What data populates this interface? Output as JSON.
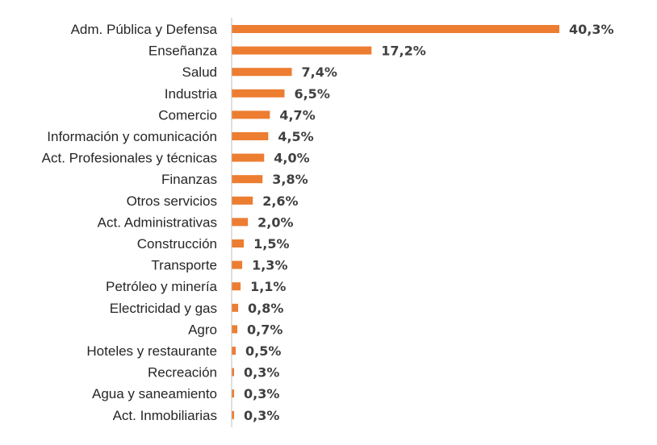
{
  "chart_data": {
    "type": "bar",
    "orientation": "horizontal",
    "title": "",
    "xlabel": "",
    "ylabel": "",
    "color": "#ED7D31",
    "categories": [
      "Adm. Pública y Defensa",
      "Enseñanza",
      "Salud",
      "Industria",
      "Comercio",
      "Información y comunicación",
      "Act. Profesionales y técnicas",
      "Finanzas",
      "Otros servicios",
      "Act. Administrativas",
      "Construcción",
      "Transporte",
      "Petróleo y minería",
      "Electricidad y gas",
      "Agro",
      "Hoteles y restaurante",
      "Recreación",
      "Agua y saneamiento",
      "Act. Inmobiliarias"
    ],
    "values": [
      40.3,
      17.2,
      7.4,
      6.5,
      4.7,
      4.5,
      4.0,
      3.8,
      2.6,
      2.0,
      1.5,
      1.3,
      1.1,
      0.8,
      0.7,
      0.5,
      0.3,
      0.3,
      0.3
    ],
    "value_labels": [
      "40,3%",
      "17,2%",
      "7,4%",
      "6,5%",
      "4,7%",
      "4,5%",
      "4,0%",
      "3,8%",
      "2,6%",
      "2,0%",
      "1,5%",
      "1,3%",
      "1,1%",
      "0,8%",
      "0,7%",
      "0,5%",
      "0,3%",
      "0,3%",
      "0,3%"
    ],
    "xlim": [
      0,
      40.3
    ],
    "grid": false,
    "legend": "none"
  }
}
